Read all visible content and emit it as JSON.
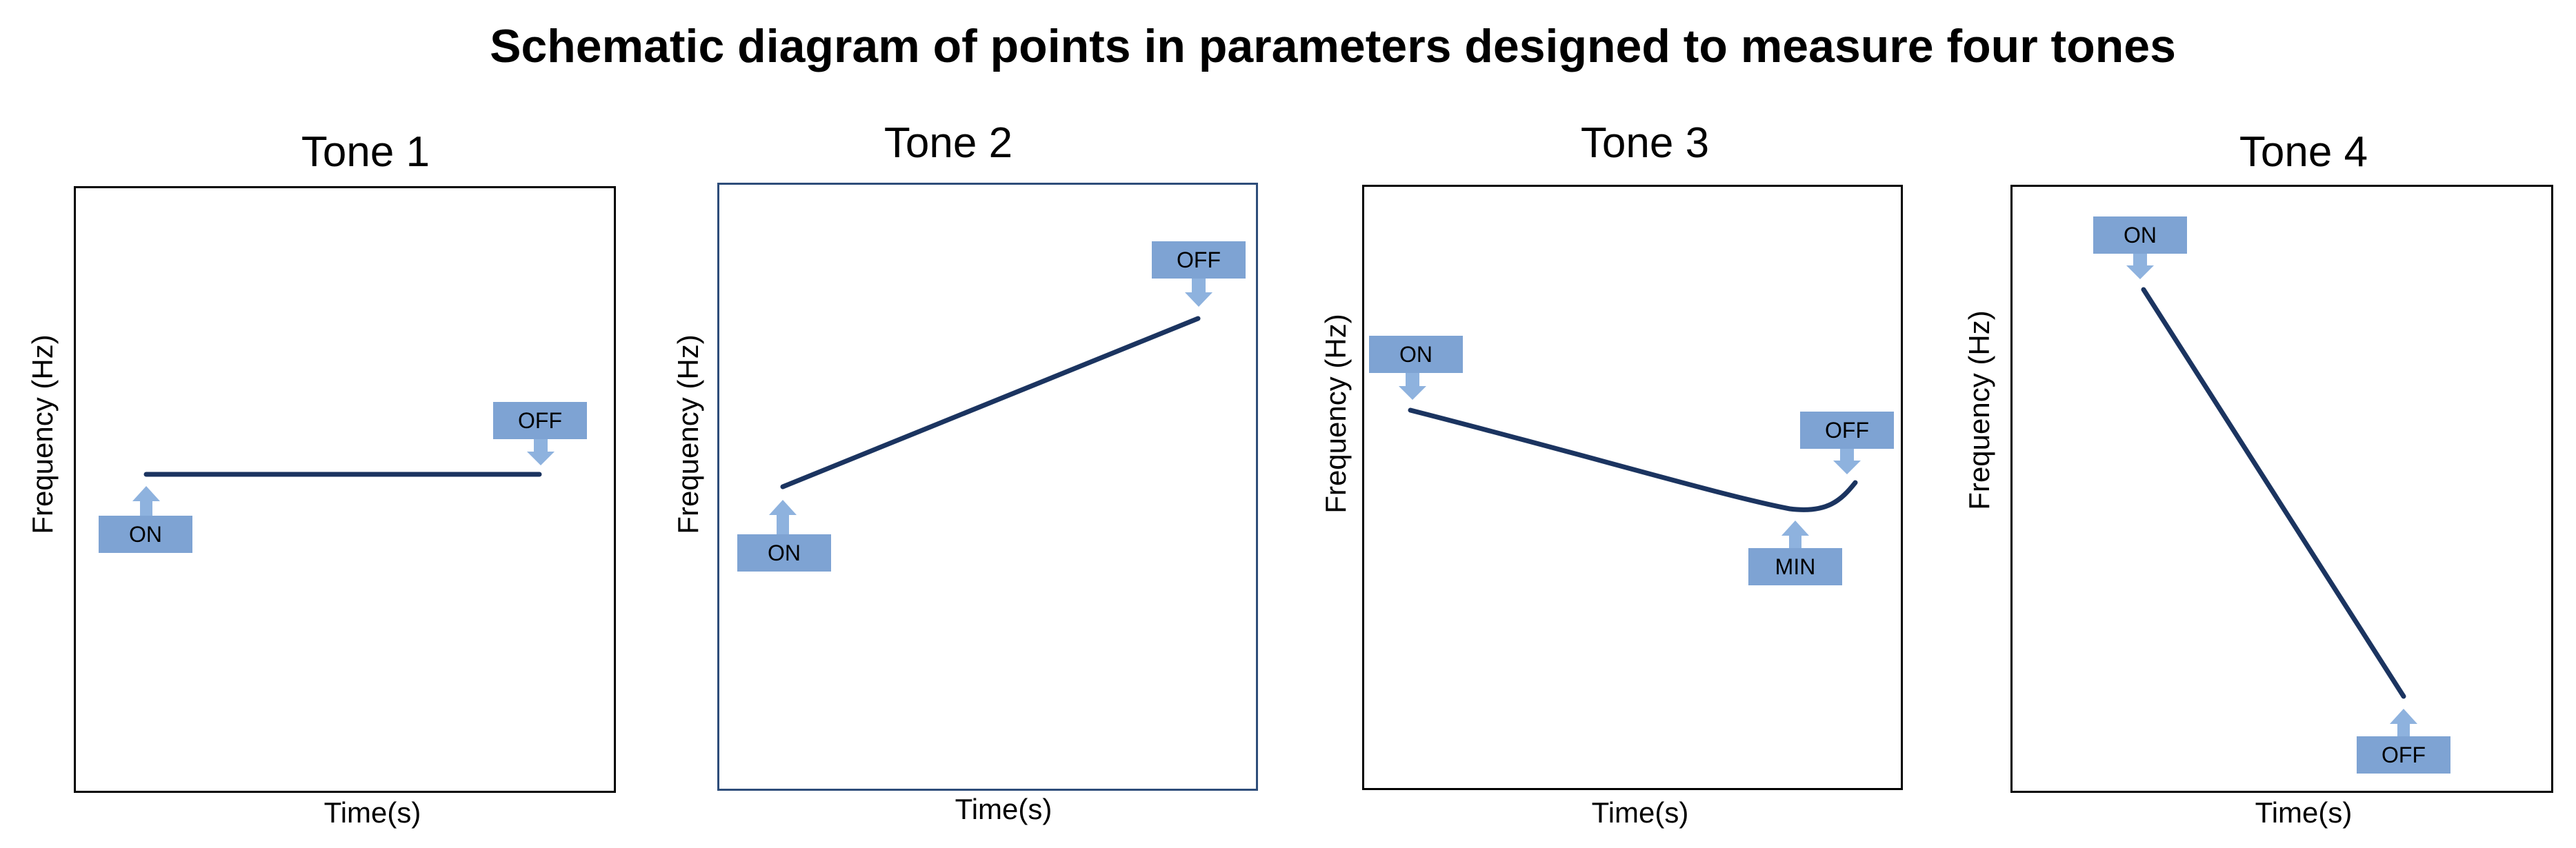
{
  "title": "Schematic diagram of points in parameters designed to measure four tones",
  "axes": {
    "ylabel": "Frequency (Hz)",
    "xlabel": "Time(s)"
  },
  "panels": [
    {
      "title": "Tone 1",
      "markers": [
        "ON",
        "OFF"
      ]
    },
    {
      "title": "Tone 2",
      "markers": [
        "ON",
        "OFF"
      ]
    },
    {
      "title": "Tone 3",
      "markers": [
        "ON",
        "MIN",
        "OFF"
      ]
    },
    {
      "title": "Tone 4",
      "markers": [
        "ON",
        "OFF"
      ]
    }
  ],
  "colors": {
    "line": "#1b3460",
    "marker_box": "#7ea3d3",
    "marker_arrow": "#8eb2de",
    "frame_tone2": "#2e4d7a"
  }
}
